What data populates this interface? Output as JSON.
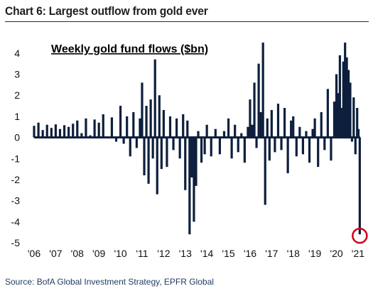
{
  "chart_title": "Chart 6: Largest outflow from gold ever",
  "source": "Source: BofA Global Investment Strategy, EPFR Global",
  "chart_data": {
    "type": "bar",
    "title": "Chart 6: Largest outflow from gold ever",
    "subtitle": "Weekly gold fund flows ($bn)",
    "xlabel": "",
    "ylabel": "",
    "ylim": [
      -5,
      4.5
    ],
    "y_ticks": [
      4,
      3,
      2,
      1,
      0,
      -1,
      -2,
      -3,
      -4,
      -5
    ],
    "y_tick_labels": [
      "4",
      "3",
      "2",
      "1",
      "0",
      "-1",
      "-2",
      "-3",
      "-4",
      "-5"
    ],
    "x_ticks": [
      "'06",
      "'07",
      "'08",
      "'09",
      "'10",
      "'11",
      "'12",
      "'13",
      "'14",
      "'15",
      "'16",
      "'17",
      "'18",
      "'19",
      "'20",
      "'21"
    ],
    "x_tick_values": [
      2006,
      2007,
      2008,
      2009,
      2010,
      2011,
      2012,
      2013,
      2014,
      2015,
      2016,
      2017,
      2018,
      2019,
      2020,
      2021
    ],
    "xlim": [
      2006,
      2021.2
    ],
    "grid": false,
    "legend": "none",
    "bar_color": "#0d1f3c",
    "highlight_color": "#d0021b",
    "annotation": "circle around the final (largest) outflow, about -4.6",
    "series": [
      {
        "values": [
          [
            2006.0,
            0.55
          ],
          [
            2006.2,
            0.7
          ],
          [
            2006.4,
            0.35
          ],
          [
            2006.6,
            0.6
          ],
          [
            2006.8,
            0.45
          ],
          [
            2007.0,
            0.62
          ],
          [
            2007.2,
            0.4
          ],
          [
            2007.4,
            0.58
          ],
          [
            2007.6,
            0.5
          ],
          [
            2007.8,
            0.65
          ],
          [
            2008.0,
            0.8
          ],
          [
            2008.2,
            0.2
          ],
          [
            2008.4,
            0.9
          ],
          [
            2008.6,
            0.1
          ],
          [
            2008.8,
            0.85
          ],
          [
            2009.0,
            0.7
          ],
          [
            2009.2,
            1.1
          ],
          [
            2009.4,
            0.0
          ],
          [
            2009.6,
            0.95
          ],
          [
            2009.8,
            -0.2
          ],
          [
            2010.0,
            1.5
          ],
          [
            2010.15,
            -0.3
          ],
          [
            2010.3,
            1.0
          ],
          [
            2010.45,
            -0.9
          ],
          [
            2010.6,
            1.2
          ],
          [
            2010.75,
            -0.5
          ],
          [
            2010.9,
            0.9
          ],
          [
            2011.0,
            2.6
          ],
          [
            2011.1,
            -1.8
          ],
          [
            2011.2,
            1.5
          ],
          [
            2011.3,
            -2.2
          ],
          [
            2011.4,
            1.8
          ],
          [
            2011.5,
            -1.0
          ],
          [
            2011.6,
            3.7
          ],
          [
            2011.7,
            -2.7
          ],
          [
            2011.8,
            2.0
          ],
          [
            2011.9,
            -1.5
          ],
          [
            2012.0,
            1.3
          ],
          [
            2012.15,
            -1.4
          ],
          [
            2012.3,
            1.0
          ],
          [
            2012.45,
            -0.6
          ],
          [
            2012.6,
            0.9
          ],
          [
            2012.75,
            -1.0
          ],
          [
            2012.9,
            1.1
          ],
          [
            2013.0,
            -2.5
          ],
          [
            2013.1,
            0.8
          ],
          [
            2013.2,
            -4.6
          ],
          [
            2013.3,
            -1.9
          ],
          [
            2013.4,
            -4.0
          ],
          [
            2013.5,
            -2.3
          ],
          [
            2013.6,
            0.3
          ],
          [
            2013.75,
            -1.2
          ],
          [
            2013.9,
            -0.8
          ],
          [
            2014.0,
            0.6
          ],
          [
            2014.2,
            -0.9
          ],
          [
            2014.4,
            0.4
          ],
          [
            2014.6,
            -0.8
          ],
          [
            2014.8,
            0.3
          ],
          [
            2015.0,
            0.9
          ],
          [
            2015.15,
            -1.0
          ],
          [
            2015.3,
            0.6
          ],
          [
            2015.45,
            -0.7
          ],
          [
            2015.6,
            0.2
          ],
          [
            2015.75,
            -1.2
          ],
          [
            2015.9,
            0.5
          ],
          [
            2016.0,
            1.8
          ],
          [
            2016.1,
            0.6
          ],
          [
            2016.2,
            2.6
          ],
          [
            2016.3,
            -0.5
          ],
          [
            2016.4,
            3.5
          ],
          [
            2016.5,
            1.2
          ],
          [
            2016.6,
            4.5
          ],
          [
            2016.7,
            -3.2
          ],
          [
            2016.8,
            0.9
          ],
          [
            2016.9,
            -1.1
          ],
          [
            2017.0,
            1.3
          ],
          [
            2017.15,
            -0.7
          ],
          [
            2017.3,
            1.6
          ],
          [
            2017.45,
            -0.6
          ],
          [
            2017.6,
            1.4
          ],
          [
            2017.75,
            -1.7
          ],
          [
            2017.9,
            0.8
          ],
          [
            2018.0,
            1.0
          ],
          [
            2018.15,
            -0.9
          ],
          [
            2018.3,
            0.5
          ],
          [
            2018.45,
            -0.8
          ],
          [
            2018.6,
            0.3
          ],
          [
            2018.75,
            -1.2
          ],
          [
            2018.9,
            0.4
          ],
          [
            2019.0,
            0.9
          ],
          [
            2019.15,
            -1.4
          ],
          [
            2019.3,
            1.2
          ],
          [
            2019.45,
            -0.6
          ],
          [
            2019.6,
            2.3
          ],
          [
            2019.75,
            -1.1
          ],
          [
            2019.9,
            1.7
          ],
          [
            2020.0,
            3.0
          ],
          [
            2020.08,
            2.1
          ],
          [
            2020.16,
            3.9
          ],
          [
            2020.24,
            1.4
          ],
          [
            2020.32,
            3.6
          ],
          [
            2020.4,
            4.5
          ],
          [
            2020.48,
            3.8
          ],
          [
            2020.56,
            3.2
          ],
          [
            2020.64,
            2.6
          ],
          [
            2020.72,
            -0.2
          ],
          [
            2020.8,
            1.9
          ],
          [
            2020.88,
            -0.8
          ],
          [
            2020.96,
            1.4
          ],
          [
            2021.02,
            0.4
          ],
          [
            2021.08,
            -4.6
          ]
        ]
      }
    ]
  }
}
